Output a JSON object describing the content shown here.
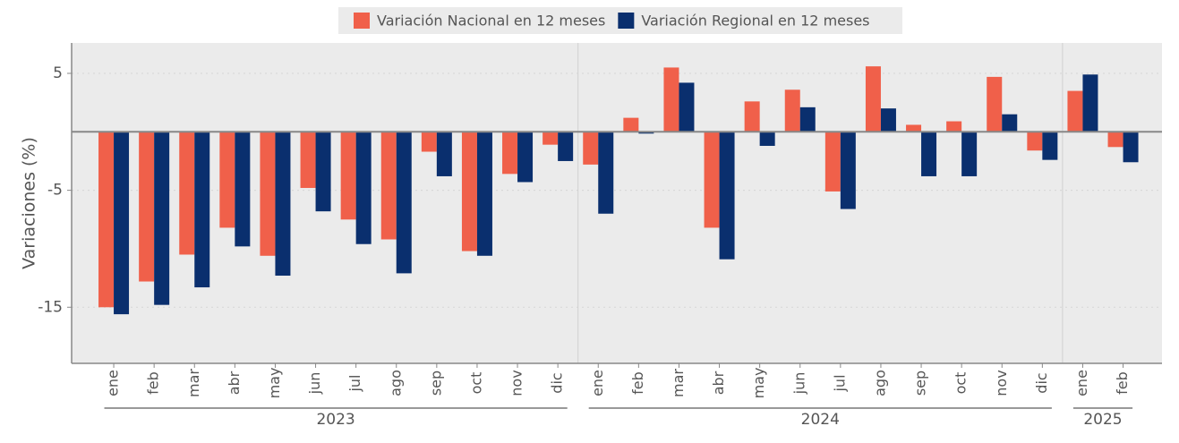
{
  "chart_data": {
    "type": "bar",
    "y_label": "Variaciones (%)",
    "groups": [
      {
        "label": "2023",
        "categories": [
          "ene",
          "feb",
          "mar",
          "abr",
          "may",
          "jun",
          "jul",
          "ago",
          "sep",
          "oct",
          "nov",
          "dic"
        ]
      },
      {
        "label": "2024",
        "categories": [
          "ene",
          "feb",
          "mar",
          "abr",
          "may",
          "jun",
          "jul",
          "ago",
          "sep",
          "oct",
          "nov",
          "dic"
        ]
      },
      {
        "label": "2025",
        "categories": [
          "ene",
          "feb"
        ]
      }
    ],
    "series": [
      {
        "name": "Variación Nacional en 12 meses",
        "color": "#f0604a",
        "values": [
          -15.0,
          -12.8,
          -10.5,
          -8.2,
          -10.6,
          -4.8,
          -7.5,
          -9.2,
          -1.7,
          -10.2,
          -3.6,
          -1.1,
          -2.8,
          1.2,
          5.5,
          -8.2,
          2.6,
          3.6,
          -5.1,
          5.6,
          0.6,
          0.9,
          4.7,
          -1.6,
          3.5,
          -1.3
        ]
      },
      {
        "name": "Variación Regional en 12 meses",
        "color": "#0a2f6e",
        "values": [
          -15.6,
          -14.8,
          -13.3,
          -9.8,
          -12.3,
          -6.8,
          -9.6,
          -12.1,
          -3.8,
          -10.6,
          -4.3,
          -2.5,
          -7.0,
          -0.15,
          4.2,
          -10.9,
          -1.2,
          2.1,
          -6.6,
          2.0,
          -3.8,
          -3.8,
          1.5,
          -2.4,
          4.9,
          -2.6
        ]
      }
    ],
    "ylim": [
      -19.8,
      7.6
    ],
    "yticks": [
      5,
      -5,
      -15
    ],
    "grid": true,
    "legend": "top"
  }
}
